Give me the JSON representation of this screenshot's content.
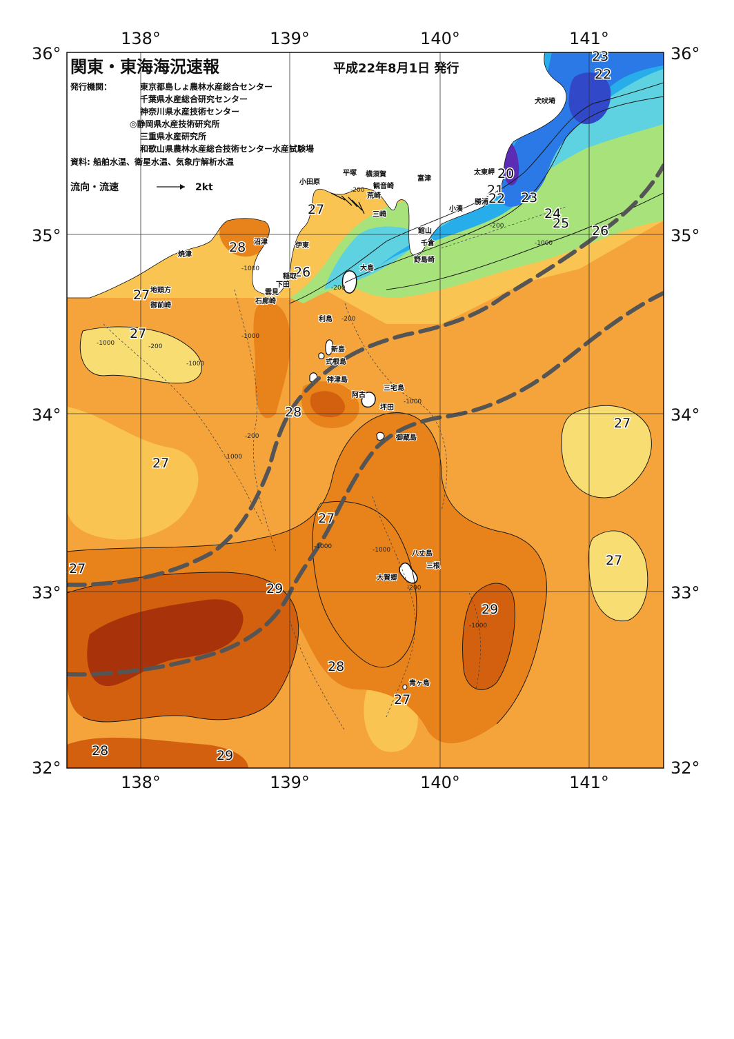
{
  "header": {
    "title": "関東・東海海況速報",
    "issue_date": "平成22年8月1日 発行",
    "issuer_label": "発行機関：",
    "issuers": [
      "東京都島しょ農林水産総合センター",
      "千葉県水産総合研究センター",
      "神奈川県水産技術センター",
      "◎静岡県水産技術研究所",
      "三重県水産研究所",
      "和歌山県農林水産総合技術センター水産試験場"
    ],
    "source": "資料: 船舶水温、衛星水温、気象庁解析水温",
    "flow_legend": "流向・流速",
    "flow_scale": "2kt"
  },
  "axes": {
    "lon_labels": [
      "138°",
      "139°",
      "140°",
      "141°"
    ],
    "lat_labels": [
      "36°",
      "35°",
      "34°",
      "33°",
      "32°"
    ]
  },
  "colors": {
    "sea_base": "#F5A43C",
    "light_band": "#FAC453",
    "pale": "#F8DD72",
    "warm_28": "#E8821A",
    "warm_29": "#D2600E",
    "hot_30": "#A8330A",
    "green": "#A8E27A",
    "aqua": "#5ED2E0",
    "cyan": "#27AEEA",
    "blue": "#2A79E6",
    "deep_blue": "#3148C9",
    "violet": "#5C2DB4",
    "land": "#ffffff",
    "kuroshio_axis": "#555555"
  },
  "isotherm_labels": [
    "23",
    "22",
    "20",
    "21",
    "22",
    "23",
    "24",
    "25",
    "26",
    "27",
    "28",
    "26",
    "27",
    "27",
    "28",
    "27",
    "27",
    "27",
    "27",
    "29",
    "27",
    "29",
    "28",
    "27",
    "28",
    "29"
  ],
  "depth_labels": [
    "-200",
    "-200",
    "-1000",
    "-1000",
    "-200",
    "-200",
    "-200",
    "-1000",
    "-1000",
    "-1000",
    "-1000",
    "-1000",
    "-1000",
    "-200",
    "-1000",
    "-200",
    "-1000"
  ],
  "places": [
    "犬吠埼",
    "太東岬",
    "勝浦",
    "小湊",
    "富津",
    "館山",
    "千倉",
    "野島崎",
    "横須賀",
    "観音崎",
    "平塚",
    "荒崎",
    "三崎",
    "小田原",
    "大島",
    "伊東",
    "稲取",
    "下田",
    "雲見",
    "石廊崎",
    "沼津",
    "焼津",
    "地頭方",
    "御前崎",
    "利島",
    "新島",
    "式根島",
    "神津島",
    "三宅島",
    "阿古",
    "坪田",
    "御蔵島",
    "八丈島",
    "三根",
    "大賀郷",
    "青ヶ島"
  ]
}
